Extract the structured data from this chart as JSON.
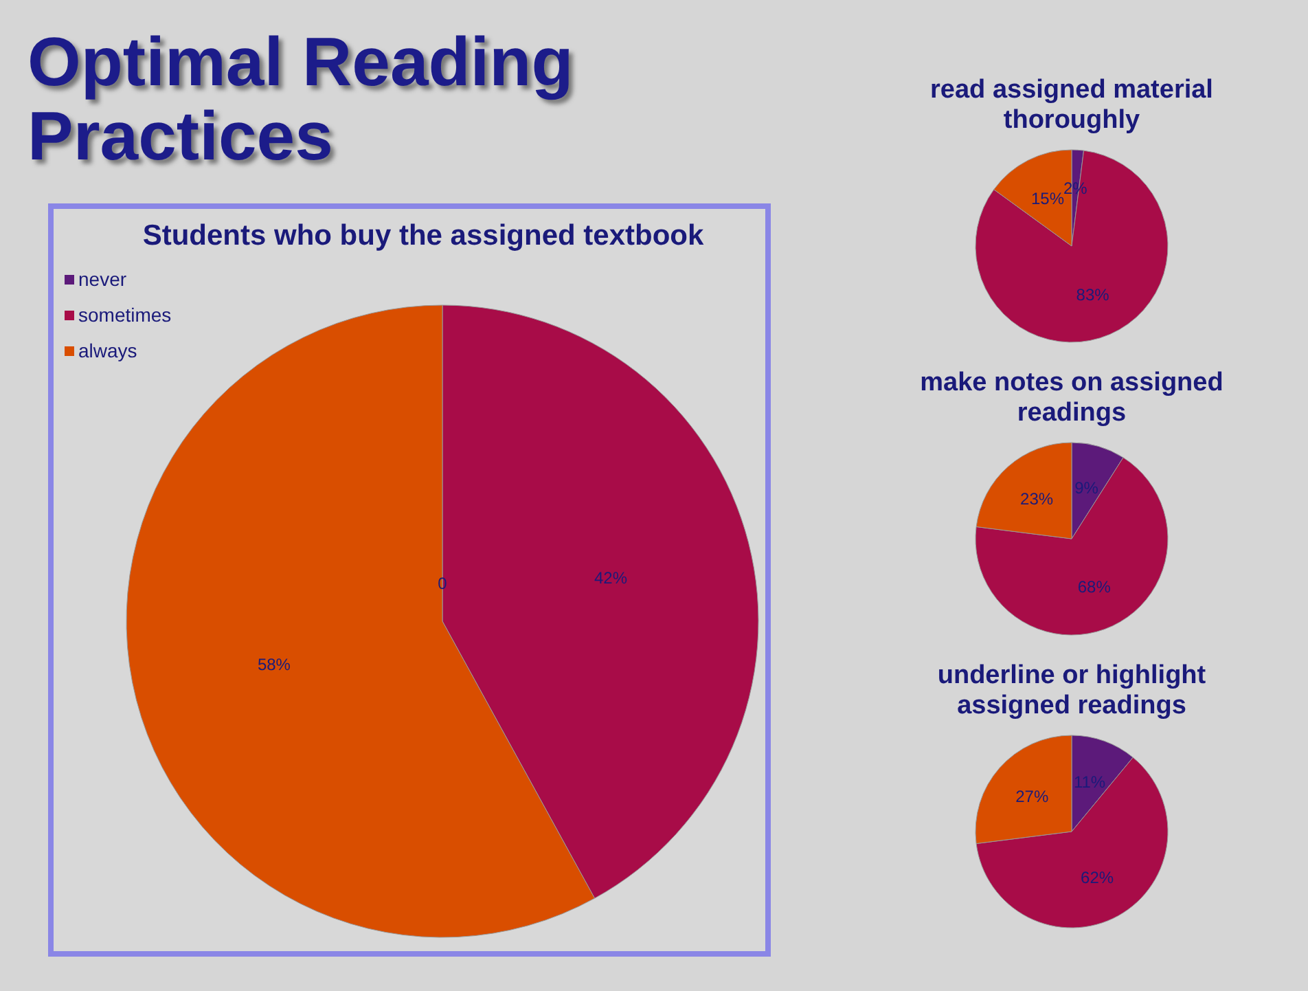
{
  "chart_data": [
    {
      "type": "pie",
      "title": "Optimal Reading Practices",
      "subtitle": "Students who buy  the assigned textbook",
      "categories": [
        "never",
        "sometimes",
        "always"
      ],
      "values": [
        0,
        42,
        58
      ],
      "value_labels": [
        "0",
        "42%",
        "58%"
      ],
      "colors": [
        "#5c1a7a",
        "#a80c48",
        "#d94e00"
      ],
      "legend": "top left"
    },
    {
      "type": "pie",
      "title": "read assigned material thoroughly",
      "categories": [
        null,
        null,
        null
      ],
      "values": [
        2,
        83,
        15
      ],
      "value_labels": [
        "2%",
        "83%",
        "15%"
      ],
      "colors": [
        "#5c1a7a",
        "#a80c48",
        "#d94e00"
      ],
      "legend": false
    },
    {
      "type": "pie",
      "title": "make notes on assigned readings",
      "categories": [
        null,
        null,
        null
      ],
      "values": [
        9,
        68,
        23
      ],
      "value_labels": [
        "9%",
        "68%",
        "23%"
      ],
      "colors": [
        "#5c1a7a",
        "#a80c48",
        "#d94e00"
      ],
      "legend": false
    },
    {
      "type": "pie",
      "title": "underline or highlight assigned readings",
      "categories": [
        null,
        null,
        null
      ],
      "values": [
        11,
        62,
        27
      ],
      "value_labels": [
        "11%",
        "62%",
        "27%"
      ],
      "colors": [
        "#5c1a7a",
        "#a80c48",
        "#d94e00"
      ],
      "legend": false
    }
  ]
}
